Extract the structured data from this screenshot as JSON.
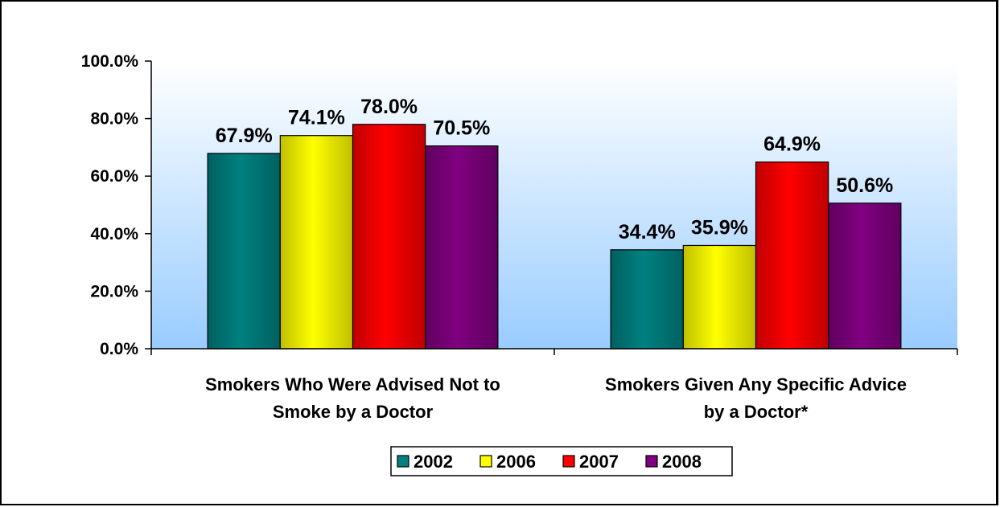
{
  "chart_data": {
    "type": "bar",
    "title": "",
    "xlabel": "",
    "ylabel": "",
    "ylim": [
      0,
      100
    ],
    "y_ticks": [
      "0.0%",
      "20.0%",
      "40.0%",
      "60.0%",
      "80.0%",
      "100.0%"
    ],
    "y_tick_values": [
      0,
      20,
      40,
      60,
      80,
      100
    ],
    "categories": [
      [
        "Smokers Who Were Advised Not to",
        "Smoke by a Doctor"
      ],
      [
        "Smokers Given Any Specific Advice",
        "by a Doctor*"
      ]
    ],
    "series": [
      {
        "name": "2002",
        "color": "#008080",
        "values": [
          67.9,
          34.4
        ],
        "labels": [
          "67.9%",
          "34.4%"
        ]
      },
      {
        "name": "2006",
        "color": "#FFFF00",
        "values": [
          74.1,
          35.9
        ],
        "labels": [
          "74.1%",
          "35.9%"
        ]
      },
      {
        "name": "2007",
        "color": "#FF0000",
        "values": [
          78.0,
          64.9
        ],
        "labels": [
          "78.0%",
          "64.9%"
        ]
      },
      {
        "name": "2008",
        "color": "#800080",
        "values": [
          70.5,
          50.6
        ],
        "labels": [
          "70.5%",
          "50.6%"
        ]
      }
    ],
    "legend_position": "bottom",
    "plot_background": "gradient white-to-light-blue",
    "grid": false
  }
}
